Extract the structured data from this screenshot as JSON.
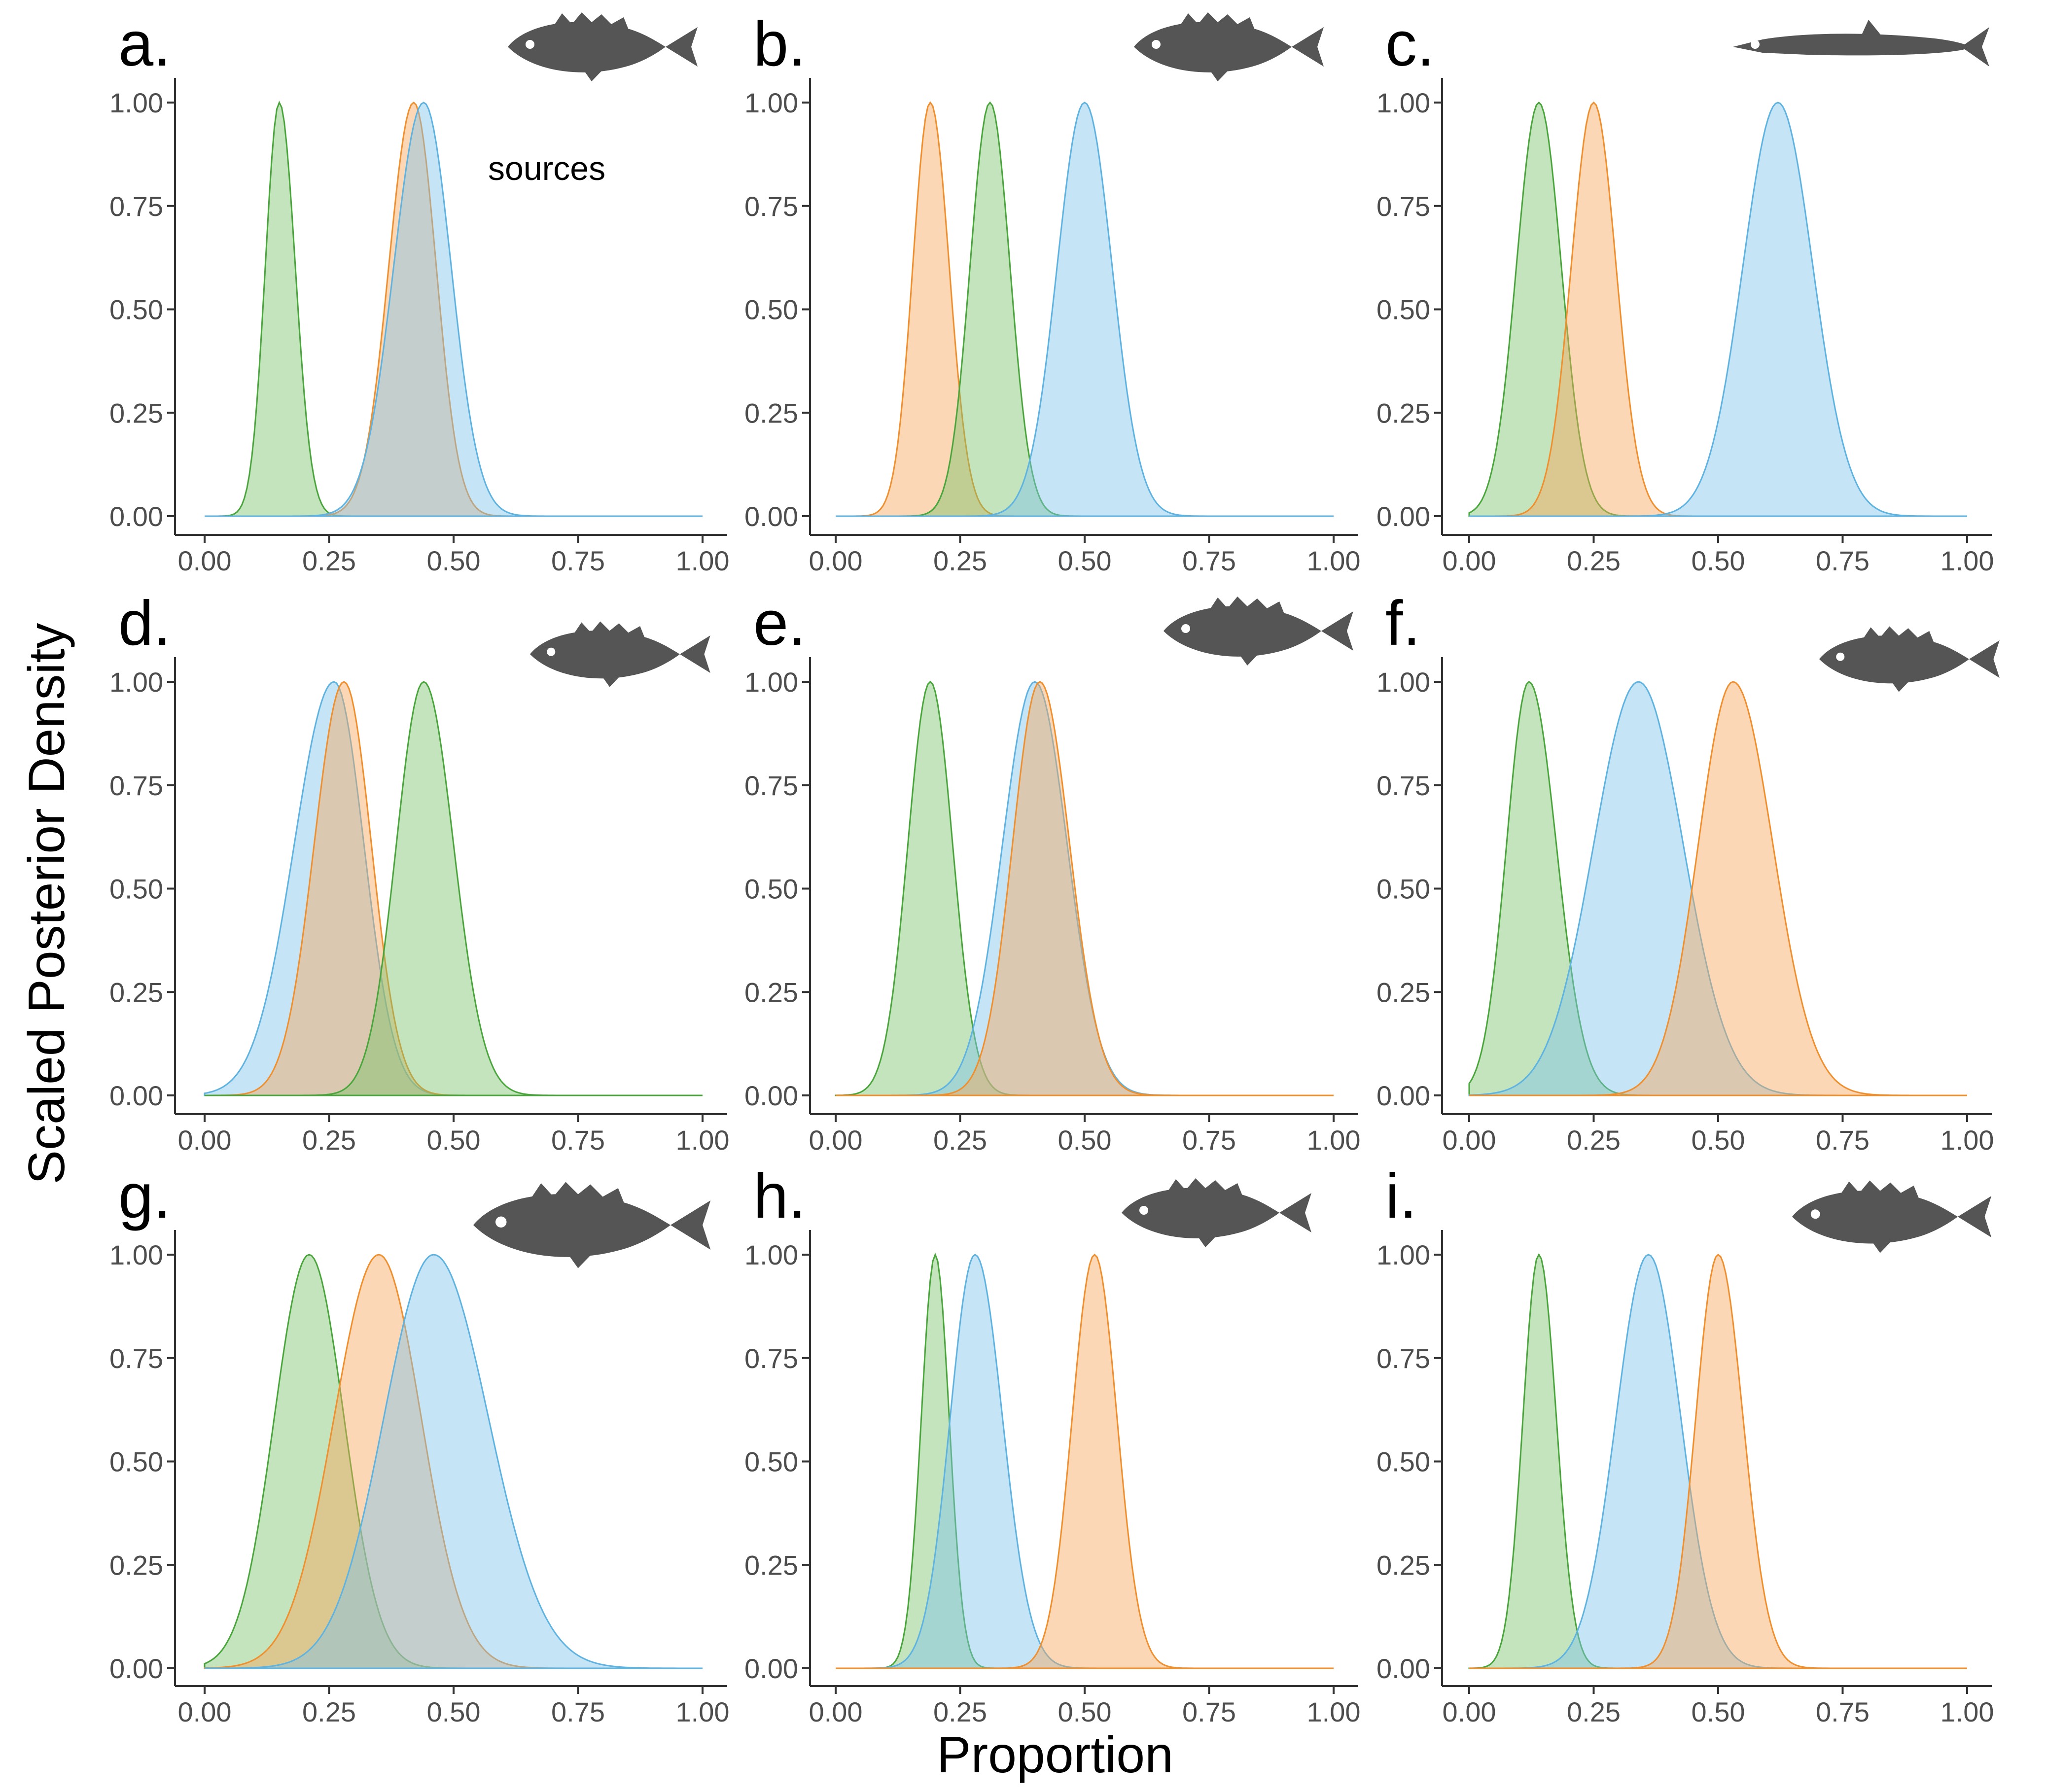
{
  "figure": {
    "y_axis_title": "Scaled Posterior Density",
    "x_axis_title": "Proportion",
    "legend_label": "sources"
  },
  "chart_data": {
    "type": "area",
    "xlim": [
      0,
      1
    ],
    "ylim": [
      0,
      1
    ],
    "x_ticks": [
      "0.00",
      "0.25",
      "0.50",
      "0.75",
      "1.00"
    ],
    "y_ticks": [
      "0.00",
      "0.25",
      "0.50",
      "0.75",
      "1.00"
    ],
    "xlabel": "Proportion",
    "ylabel": "Scaled Posterior Density",
    "series_colors": {
      "green": "#7bc36b",
      "orange": "#f7a65a",
      "blue": "#7fc4ea"
    },
    "series_strokes": {
      "green": "#4aa63c",
      "orange": "#f08f2e",
      "blue": "#5fb3e0"
    },
    "panels": [
      {
        "label": "a.",
        "fish_icon": "grunt-fish-icon",
        "series": [
          {
            "name": "green",
            "mode": 0.15,
            "sd_left": 0.028,
            "sd_right": 0.032
          },
          {
            "name": "orange",
            "mode": 0.42,
            "sd_left": 0.05,
            "sd_right": 0.045
          },
          {
            "name": "blue",
            "mode": 0.44,
            "sd_left": 0.06,
            "sd_right": 0.055
          }
        ]
      },
      {
        "label": "b.",
        "fish_icon": "snapper-fish-icon",
        "series": [
          {
            "name": "orange",
            "mode": 0.19,
            "sd_left": 0.035,
            "sd_right": 0.038
          },
          {
            "name": "green",
            "mode": 0.31,
            "sd_left": 0.04,
            "sd_right": 0.04
          },
          {
            "name": "blue",
            "mode": 0.5,
            "sd_left": 0.055,
            "sd_right": 0.055
          }
        ]
      },
      {
        "label": "c.",
        "fish_icon": "barracuda-fish-icon",
        "series": [
          {
            "name": "green",
            "mode": 0.14,
            "sd_left": 0.045,
            "sd_right": 0.045
          },
          {
            "name": "orange",
            "mode": 0.25,
            "sd_left": 0.045,
            "sd_right": 0.045
          },
          {
            "name": "blue",
            "mode": 0.62,
            "sd_left": 0.07,
            "sd_right": 0.07
          }
        ]
      },
      {
        "label": "d.",
        "fish_icon": "squirrelfish-icon",
        "series": [
          {
            "name": "blue",
            "mode": 0.26,
            "sd_left": 0.08,
            "sd_right": 0.06
          },
          {
            "name": "orange",
            "mode": 0.28,
            "sd_left": 0.06,
            "sd_right": 0.055
          },
          {
            "name": "green",
            "mode": 0.44,
            "sd_left": 0.055,
            "sd_right": 0.06
          }
        ]
      },
      {
        "label": "e.",
        "fish_icon": "lionfish-icon",
        "series": [
          {
            "name": "green",
            "mode": 0.19,
            "sd_left": 0.045,
            "sd_right": 0.045
          },
          {
            "name": "blue",
            "mode": 0.4,
            "sd_left": 0.065,
            "sd_right": 0.065
          },
          {
            "name": "orange",
            "mode": 0.41,
            "sd_left": 0.055,
            "sd_right": 0.06
          }
        ]
      },
      {
        "label": "f.",
        "fish_icon": "hind-fish-icon",
        "series": [
          {
            "name": "green",
            "mode": 0.12,
            "sd_left": 0.045,
            "sd_right": 0.055
          },
          {
            "name": "blue",
            "mode": 0.34,
            "sd_left": 0.09,
            "sd_right": 0.09
          },
          {
            "name": "orange",
            "mode": 0.53,
            "sd_left": 0.07,
            "sd_right": 0.08
          }
        ]
      },
      {
        "label": "g.",
        "fish_icon": "grouper-fish-icon",
        "series": [
          {
            "name": "green",
            "mode": 0.21,
            "sd_left": 0.07,
            "sd_right": 0.07
          },
          {
            "name": "orange",
            "mode": 0.35,
            "sd_left": 0.09,
            "sd_right": 0.085
          },
          {
            "name": "blue",
            "mode": 0.46,
            "sd_left": 0.1,
            "sd_right": 0.11
          }
        ]
      },
      {
        "label": "h.",
        "fish_icon": "porgy-fish-icon",
        "series": [
          {
            "name": "green",
            "mode": 0.2,
            "sd_left": 0.028,
            "sd_right": 0.028
          },
          {
            "name": "blue",
            "mode": 0.28,
            "sd_left": 0.05,
            "sd_right": 0.055
          },
          {
            "name": "orange",
            "mode": 0.52,
            "sd_left": 0.045,
            "sd_right": 0.045
          }
        ]
      },
      {
        "label": "i.",
        "fish_icon": "striped-grunt-fish-icon",
        "series": [
          {
            "name": "green",
            "mode": 0.14,
            "sd_left": 0.032,
            "sd_right": 0.035
          },
          {
            "name": "blue",
            "mode": 0.36,
            "sd_left": 0.065,
            "sd_right": 0.065
          },
          {
            "name": "orange",
            "mode": 0.5,
            "sd_left": 0.045,
            "sd_right": 0.05
          }
        ]
      }
    ]
  }
}
